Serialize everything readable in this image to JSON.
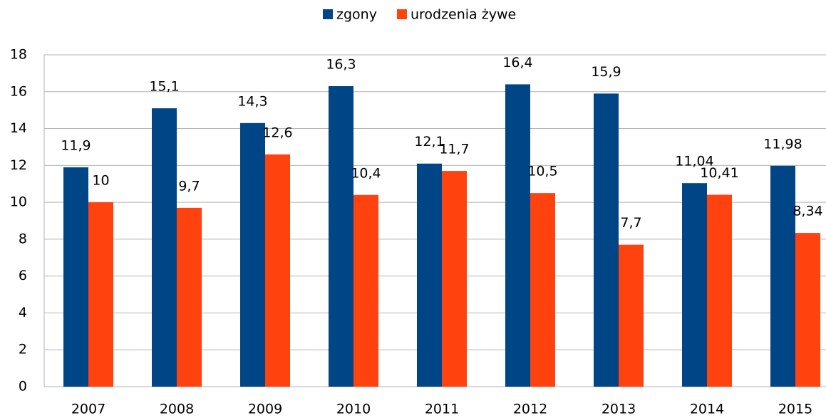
{
  "chart_data": {
    "type": "bar",
    "categories": [
      "2007",
      "2008",
      "2009",
      "2010",
      "2011",
      "2012",
      "2013",
      "2014",
      "2015"
    ],
    "series": [
      {
        "name": "zgony",
        "color": "#004586",
        "values": [
          11.9,
          15.1,
          14.3,
          16.3,
          12.1,
          16.4,
          15.9,
          11.04,
          11.98
        ],
        "value_labels": [
          "11,9",
          "15,1",
          "14,3",
          "16,3",
          "12,1",
          "16,4",
          "15,9",
          "11,04",
          "11,98"
        ]
      },
      {
        "name": "urodzenia żywe",
        "color": "#ff420e",
        "values": [
          10,
          9.7,
          12.6,
          10.4,
          11.7,
          10.5,
          7.7,
          10.41,
          8.34
        ],
        "value_labels": [
          "10",
          "9,7",
          "12,6",
          "10,4",
          "11,7",
          "10,5",
          "7,7",
          "10,41",
          "8,34"
        ]
      }
    ],
    "ylim": [
      0,
      18
    ],
    "yticks": [
      0,
      2,
      4,
      6,
      8,
      10,
      12,
      14,
      16,
      18
    ],
    "grid": true,
    "legend": "top"
  }
}
